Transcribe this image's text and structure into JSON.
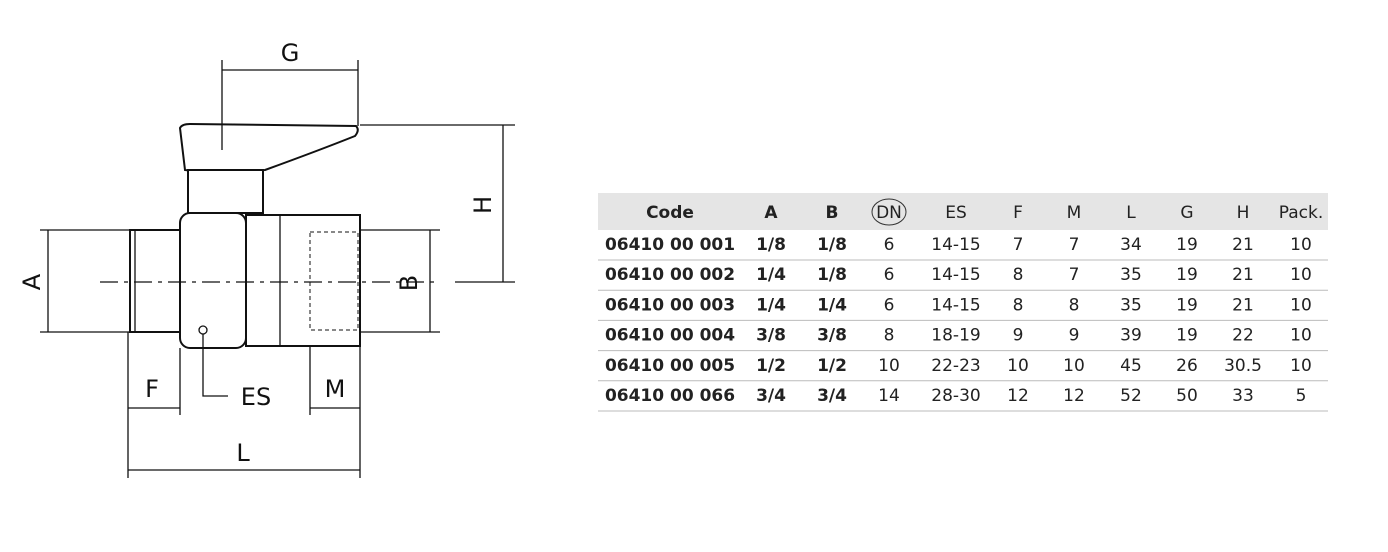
{
  "drawing": {
    "labels": {
      "g": "G",
      "h": "H",
      "a": "A",
      "b": "B",
      "f": "F",
      "es": "ES",
      "m": "M",
      "l": "L"
    }
  },
  "table": {
    "header": [
      "Code",
      "A",
      "B",
      "DN",
      "ES",
      "F",
      "M",
      "L",
      "G",
      "H",
      "Pack."
    ],
    "rows": [
      [
        "06410 00 001",
        "1/8",
        "1/8",
        6,
        "14-15",
        7,
        7,
        34,
        19,
        21,
        10
      ],
      [
        "06410 00 002",
        "1/4",
        "1/8",
        6,
        "14-15",
        8,
        7,
        35,
        19,
        21,
        10
      ],
      [
        "06410 00 003",
        "1/4",
        "1/4",
        6,
        "14-15",
        8,
        8,
        35,
        19,
        21,
        10
      ],
      [
        "06410 00 004",
        "3/8",
        "3/8",
        8,
        "18-19",
        9,
        9,
        39,
        19,
        22,
        10
      ],
      [
        "06410 00 005",
        "1/2",
        "1/2",
        10,
        "22-23",
        10,
        10,
        45,
        26,
        30.5,
        10
      ],
      [
        "06410 00 066",
        "3/4",
        "3/4",
        14,
        "28-30",
        12,
        12,
        52,
        50,
        33,
        5
      ]
    ]
  }
}
